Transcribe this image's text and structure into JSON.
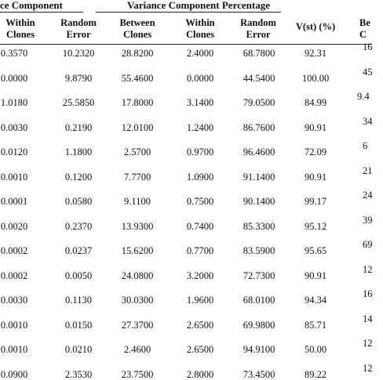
{
  "header": {
    "group_left": "ce Component",
    "group_middle": "Variance Component Percentage",
    "vst": "V(st) (%)"
  },
  "columns": [
    {
      "line1": "Within",
      "line2": "Clones"
    },
    {
      "line1": "Random",
      "line2": "Error"
    },
    {
      "line1": "Between",
      "line2": "Clones"
    },
    {
      "line1": "Within",
      "line2": "Clones"
    },
    {
      "line1": "Random",
      "line2": "Error"
    }
  ],
  "right_header": {
    "line1": "Be",
    "line2": "C"
  },
  "rows": [
    {
      "c": [
        "0.3570",
        "10.2320",
        "28.8200",
        "2.4000",
        "68.7800",
        "92.31"
      ],
      "edge": "16"
    },
    {
      "c": [
        "0.0000",
        "9.8790",
        "55.4600",
        "0.0000",
        "44.5400",
        "100.00"
      ],
      "edge": "45"
    },
    {
      "c": [
        "1.0180",
        "25.5850",
        "17.8000",
        "3.1400",
        "79.0500",
        "84.99"
      ],
      "edge": "9.4"
    },
    {
      "c": [
        "0.0030",
        "0.2190",
        "12.0100",
        "1.2400",
        "86.7600",
        "90.91"
      ],
      "edge": "34"
    },
    {
      "c": [
        "0.0120",
        "1.1800",
        "2.5700",
        "0.9700",
        "96.4600",
        "72.09"
      ],
      "edge": "6"
    },
    {
      "c": [
        "0.0010",
        "0.1200",
        "7.7700",
        "1.0900",
        "91.1400",
        "90.91"
      ],
      "edge": "21"
    },
    {
      "c": [
        "0.0001",
        "0.0580",
        "9.1100",
        "0.7500",
        "90.1400",
        "99.17"
      ],
      "edge": "24"
    },
    {
      "c": [
        "0.0020",
        "0.2370",
        "13.9300",
        "0.7400",
        "85.3300",
        "95.12"
      ],
      "edge": "39"
    },
    {
      "c": [
        "0.0002",
        "0.0237",
        "15.6200",
        "0.7700",
        "83.5900",
        "95.65"
      ],
      "edge": "69"
    },
    {
      "c": [
        "0.0002",
        "0.0050",
        "24.0800",
        "3.2000",
        "72.7300",
        "90.91"
      ],
      "edge": "12"
    },
    {
      "c": [
        "0.0030",
        "0.1130",
        "30.0300",
        "1.9600",
        "68.0100",
        "94.34"
      ],
      "edge": "16"
    },
    {
      "c": [
        "0.0010",
        "0.0150",
        "27.3700",
        "2.6500",
        "69.9800",
        "85.71"
      ],
      "edge": "14"
    },
    {
      "c": [
        "0.0010",
        "0.0210",
        "2.4600",
        "2.6500",
        "94.9100",
        "50.00"
      ],
      "edge": "12"
    },
    {
      "c": [
        "0.0900",
        "2.3530",
        "23.7500",
        "2.8000",
        "73.4500",
        "89.22"
      ],
      "edge": "12"
    }
  ]
}
